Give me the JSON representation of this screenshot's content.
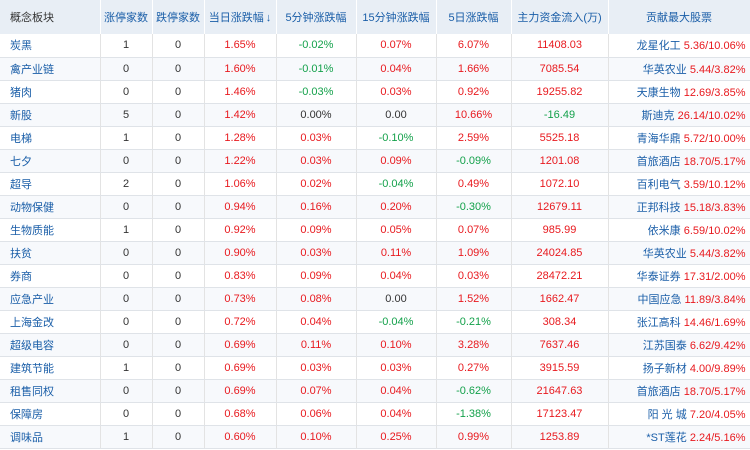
{
  "headers": {
    "concept": "概念板块",
    "limit_up": "涨停家数",
    "limit_down": "跌停家数",
    "day_change": "当日涨跌幅",
    "min5_change": "5分钟涨跌幅",
    "min15_change": "15分钟涨跌幅",
    "day5_change": "5日涨跌幅",
    "main_flow": "主力资金流入(万)",
    "top_stock": "贡献最大股票"
  },
  "sort_arrow": "↓",
  "colors": {
    "up": "#e8191e",
    "down": "#14a14b",
    "link": "#1a5ea8"
  },
  "rows": [
    {
      "name": "炭黑",
      "up": "1",
      "down": "0",
      "d": "1.65%",
      "m5": "-0.02%",
      "m15": "0.07%",
      "d5": "6.07%",
      "flow": "11408.03",
      "stock": "龙星化工",
      "price": "5.36",
      "pct": "10.06%"
    },
    {
      "name": "禽产业链",
      "up": "0",
      "down": "0",
      "d": "1.60%",
      "m5": "-0.01%",
      "m15": "0.04%",
      "d5": "1.66%",
      "flow": "7085.54",
      "stock": "华英农业",
      "price": "5.44",
      "pct": "3.82%"
    },
    {
      "name": "猪肉",
      "up": "0",
      "down": "0",
      "d": "1.46%",
      "m5": "-0.03%",
      "m15": "0.03%",
      "d5": "0.92%",
      "flow": "19255.82",
      "stock": "天康生物",
      "price": "12.69",
      "pct": "3.85%"
    },
    {
      "name": "新股",
      "up": "5",
      "down": "0",
      "d": "1.42%",
      "m5": "0.00%",
      "m15": "0.00",
      "d5": "10.66%",
      "flow": "-16.49",
      "stock": "斯迪克",
      "price": "26.14",
      "pct": "10.02%"
    },
    {
      "name": "电梯",
      "up": "1",
      "down": "0",
      "d": "1.28%",
      "m5": "0.03%",
      "m15": "-0.10%",
      "d5": "2.59%",
      "flow": "5525.18",
      "stock": "青海华鼎",
      "price": "5.72",
      "pct": "10.00%"
    },
    {
      "name": "七夕",
      "up": "0",
      "down": "0",
      "d": "1.22%",
      "m5": "0.03%",
      "m15": "0.09%",
      "d5": "-0.09%",
      "flow": "1201.08",
      "stock": "首旅酒店",
      "price": "18.70",
      "pct": "5.17%"
    },
    {
      "name": "超导",
      "up": "2",
      "down": "0",
      "d": "1.06%",
      "m5": "0.02%",
      "m15": "-0.04%",
      "d5": "0.49%",
      "flow": "1072.10",
      "stock": "百利电气",
      "price": "3.59",
      "pct": "10.12%"
    },
    {
      "name": "动物保健",
      "up": "0",
      "down": "0",
      "d": "0.94%",
      "m5": "0.16%",
      "m15": "0.20%",
      "d5": "-0.30%",
      "flow": "12679.11",
      "stock": "正邦科技",
      "price": "15.18",
      "pct": "3.83%"
    },
    {
      "name": "生物质能",
      "up": "1",
      "down": "0",
      "d": "0.92%",
      "m5": "0.09%",
      "m15": "0.05%",
      "d5": "0.07%",
      "flow": "985.99",
      "stock": "依米康",
      "price": "6.59",
      "pct": "10.02%"
    },
    {
      "name": "扶贫",
      "up": "0",
      "down": "0",
      "d": "0.90%",
      "m5": "0.03%",
      "m15": "0.11%",
      "d5": "1.09%",
      "flow": "24024.85",
      "stock": "华英农业",
      "price": "5.44",
      "pct": "3.82%"
    },
    {
      "name": "券商",
      "up": "0",
      "down": "0",
      "d": "0.83%",
      "m5": "0.09%",
      "m15": "0.04%",
      "d5": "0.03%",
      "flow": "28472.21",
      "stock": "华泰证券",
      "price": "17.31",
      "pct": "2.00%"
    },
    {
      "name": "应急产业",
      "up": "0",
      "down": "0",
      "d": "0.73%",
      "m5": "0.08%",
      "m15": "0.00",
      "d5": "1.52%",
      "flow": "1662.47",
      "stock": "中国应急",
      "price": "11.89",
      "pct": "3.84%"
    },
    {
      "name": "上海金改",
      "up": "0",
      "down": "0",
      "d": "0.72%",
      "m5": "0.04%",
      "m15": "-0.04%",
      "d5": "-0.21%",
      "flow": "308.34",
      "stock": "张江高科",
      "price": "14.46",
      "pct": "1.69%"
    },
    {
      "name": "超级电容",
      "up": "0",
      "down": "0",
      "d": "0.69%",
      "m5": "0.11%",
      "m15": "0.10%",
      "d5": "3.28%",
      "flow": "7637.46",
      "stock": "江苏国泰",
      "price": "6.62",
      "pct": "9.42%"
    },
    {
      "name": "建筑节能",
      "up": "1",
      "down": "0",
      "d": "0.69%",
      "m5": "0.03%",
      "m15": "0.03%",
      "d5": "0.27%",
      "flow": "3915.59",
      "stock": "扬子新材",
      "price": "4.00",
      "pct": "9.89%"
    },
    {
      "name": "租售同权",
      "up": "0",
      "down": "0",
      "d": "0.69%",
      "m5": "0.07%",
      "m15": "0.04%",
      "d5": "-0.62%",
      "flow": "21647.63",
      "stock": "首旅酒店",
      "price": "18.70",
      "pct": "5.17%"
    },
    {
      "name": "保障房",
      "up": "0",
      "down": "0",
      "d": "0.68%",
      "m5": "0.06%",
      "m15": "0.04%",
      "d5": "-1.38%",
      "flow": "17123.47",
      "stock": "阳 光 城",
      "price": "7.20",
      "pct": "4.05%"
    },
    {
      "name": "调味品",
      "up": "1",
      "down": "0",
      "d": "0.60%",
      "m5": "0.10%",
      "m15": "0.25%",
      "d5": "0.99%",
      "flow": "1253.89",
      "stock": "*ST莲花",
      "price": "2.24",
      "pct": "5.16%"
    }
  ]
}
